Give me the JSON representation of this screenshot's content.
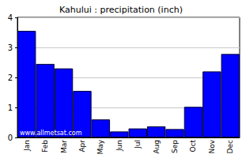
{
  "chart_data": {
    "type": "bar",
    "title": "Kahului : precipitation (inch)",
    "categories": [
      "Jan",
      "Feb",
      "Mar",
      "Apr",
      "May",
      "Jun",
      "Jul",
      "Aug",
      "Sep",
      "Oct",
      "Nov",
      "Dec"
    ],
    "values": [
      3.55,
      2.45,
      2.3,
      1.55,
      0.6,
      0.2,
      0.3,
      0.37,
      0.28,
      1.02,
      2.2,
      2.78
    ],
    "color": "#0000ff",
    "ylim": [
      0,
      4
    ],
    "yticks": [
      0,
      1,
      2,
      3,
      4
    ],
    "grid": true,
    "annotation": "www.allmetsat.com"
  }
}
